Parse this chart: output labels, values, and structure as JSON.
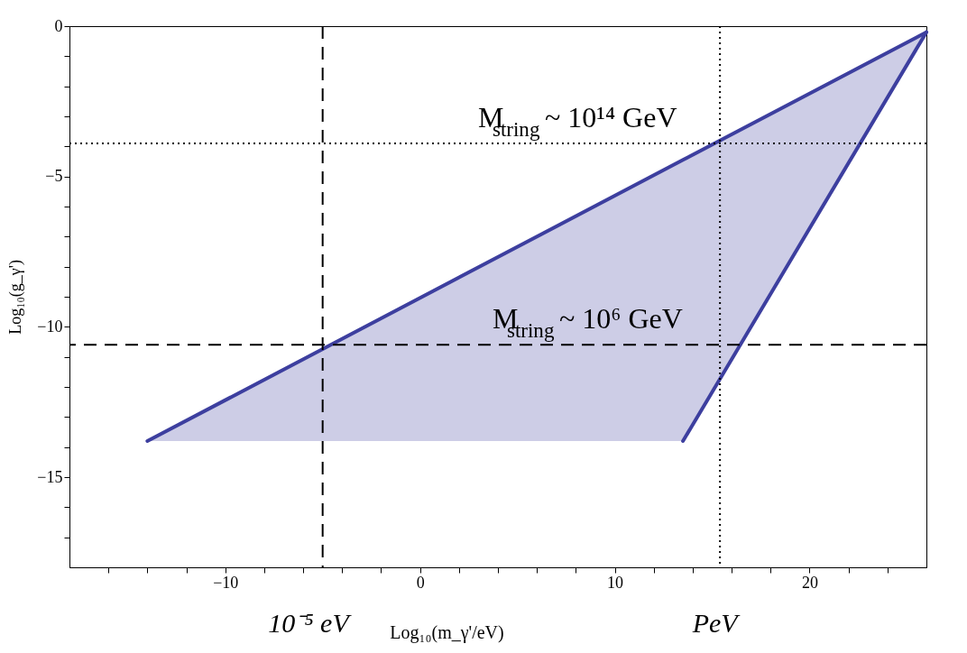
{
  "chart_data": {
    "type": "line",
    "xlabel": "Log₁₀(m_γ'/eV)",
    "ylabel": "Log₁₀(g_γ')",
    "xlim": [
      -18,
      26
    ],
    "ylim": [
      -18,
      0
    ],
    "xticks": [
      {
        "value": -16,
        "label": null
      },
      {
        "value": -14,
        "label": null
      },
      {
        "value": -12,
        "label": null
      },
      -10,
      {
        "value": -8,
        "label": null
      },
      {
        "value": -6,
        "label": null
      },
      {
        "value": -4,
        "label": null
      },
      {
        "value": -2,
        "label": null
      },
      0,
      {
        "value": 2,
        "label": null
      },
      {
        "value": 4,
        "label": null
      },
      {
        "value": 6,
        "label": null
      },
      {
        "value": 8,
        "label": null
      },
      10,
      {
        "value": 12,
        "label": null
      },
      {
        "value": 14,
        "label": null
      },
      {
        "value": 16,
        "label": null
      },
      {
        "value": 18,
        "label": null
      },
      20,
      {
        "value": 22,
        "label": null
      },
      {
        "value": 24,
        "label": null
      }
    ],
    "yticks": [
      {
        "value": -17,
        "label": null
      },
      {
        "value": -16,
        "label": null
      },
      -15,
      {
        "value": -14,
        "label": null
      },
      {
        "value": -13,
        "label": null
      },
      {
        "value": -12,
        "label": null
      },
      {
        "value": -11,
        "label": null
      },
      -10,
      {
        "value": -9,
        "label": null
      },
      {
        "value": -8,
        "label": null
      },
      {
        "value": -7,
        "label": null
      },
      {
        "value": -6,
        "label": null
      },
      -5,
      {
        "value": -4,
        "label": null
      },
      {
        "value": -3,
        "label": null
      },
      {
        "value": -2,
        "label": null
      },
      {
        "value": -1,
        "label": null
      },
      0
    ],
    "grid": false,
    "series": [
      {
        "color": "#3d3f9f",
        "x": [
          -14,
          13.5,
          26
        ],
        "values": [
          -13.8,
          -4.45,
          -0.2
        ],
        "lower": [
          -13.8,
          -13.8,
          -0.2
        ],
        "upper": [
          -13.8,
          -4.45,
          -0.2
        ]
      },
      {
        "color": "#3d3f9f",
        "x": [
          13.5,
          26
        ],
        "values": [
          -13.8,
          -0.2
        ]
      }
    ],
    "ref_lines": [
      {
        "axis": "x",
        "value": -5,
        "label": "10⁻⁵ eV",
        "color": "#000000",
        "line_style": "dashed"
      },
      {
        "axis": "x",
        "value": 15.4,
        "label": "PeV",
        "color": "#000000",
        "line_style": "dotted"
      },
      {
        "axis": "y",
        "value": -3.9,
        "label": "M$_{string}$ ~ 10¹⁴ GeV",
        "color": "#000000",
        "line_style": "dotted"
      },
      {
        "axis": "y",
        "value": -10.6,
        "label": "M$_{string}$ ~ 10⁶ GeV",
        "color": "#000000",
        "line_style": "dashed"
      }
    ]
  }
}
